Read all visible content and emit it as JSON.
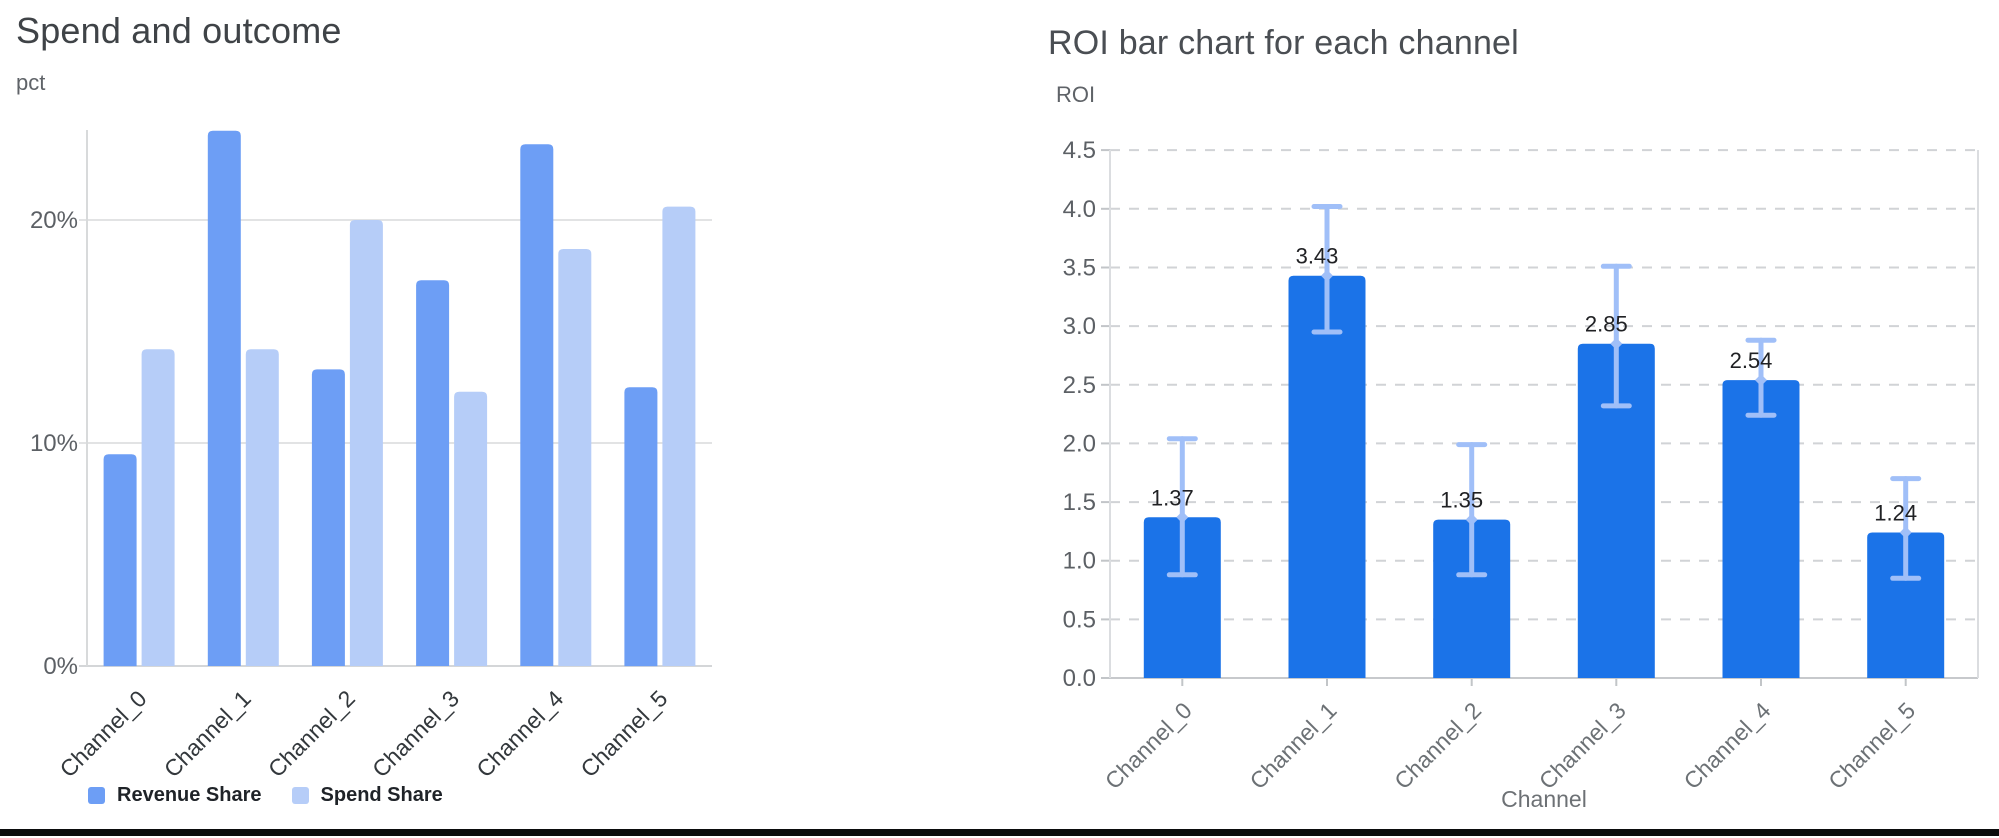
{
  "page": {
    "background": "#ffffff",
    "divider_color": "#0b0c0d"
  },
  "chart_data": [
    {
      "type": "bar",
      "title": "Spend and outcome",
      "ylabel": "pct",
      "xlabel": "",
      "categories": [
        "Channel_0",
        "Channel_1",
        "Channel_2",
        "Channel_3",
        "Channel_4",
        "Channel_5"
      ],
      "series": [
        {
          "name": "Revenue Share",
          "color": "#6d9ef5",
          "values": [
            9.5,
            24.0,
            13.3,
            17.3,
            23.4,
            12.5
          ]
        },
        {
          "name": "Spend Share",
          "color": "#b6cdf8",
          "values": [
            14.2,
            14.2,
            20.0,
            12.3,
            18.7,
            20.6
          ]
        }
      ],
      "y_ticks": [
        {
          "value": 0,
          "label": "0%"
        },
        {
          "value": 10,
          "label": "10%"
        },
        {
          "value": 20,
          "label": "20%"
        }
      ],
      "ylim": [
        0,
        24.05
      ],
      "grid": "solid",
      "legend_position": "bottom"
    },
    {
      "type": "bar",
      "title": "ROI bar chart for each channel",
      "ylabel": "ROI",
      "xlabel": "Channel",
      "categories": [
        "Channel_0",
        "Channel_1",
        "Channel_2",
        "Channel_3",
        "Channel_4",
        "Channel_5"
      ],
      "series": [
        {
          "name": "ROI",
          "color": "#1b73e8",
          "values": [
            1.37,
            3.43,
            1.35,
            2.85,
            2.54,
            1.24
          ],
          "data_labels": [
            "1.37",
            "3.43",
            "1.35",
            "2.85",
            "2.54",
            "1.24"
          ],
          "error_low": [
            0.88,
            2.95,
            0.88,
            2.32,
            2.24,
            0.85
          ],
          "error_high": [
            2.04,
            4.02,
            1.99,
            3.51,
            2.88,
            1.7
          ],
          "error_color": "#a0bff8"
        }
      ],
      "y_ticks": [
        "0.0",
        "0.5",
        "1.0",
        "1.5",
        "2.0",
        "2.5",
        "3.0",
        "3.5",
        "4.0",
        "4.5"
      ],
      "y_tick_step": 0.5,
      "ylim": [
        0,
        4.5
      ],
      "grid": "dashed",
      "legend_position": "none"
    }
  ]
}
